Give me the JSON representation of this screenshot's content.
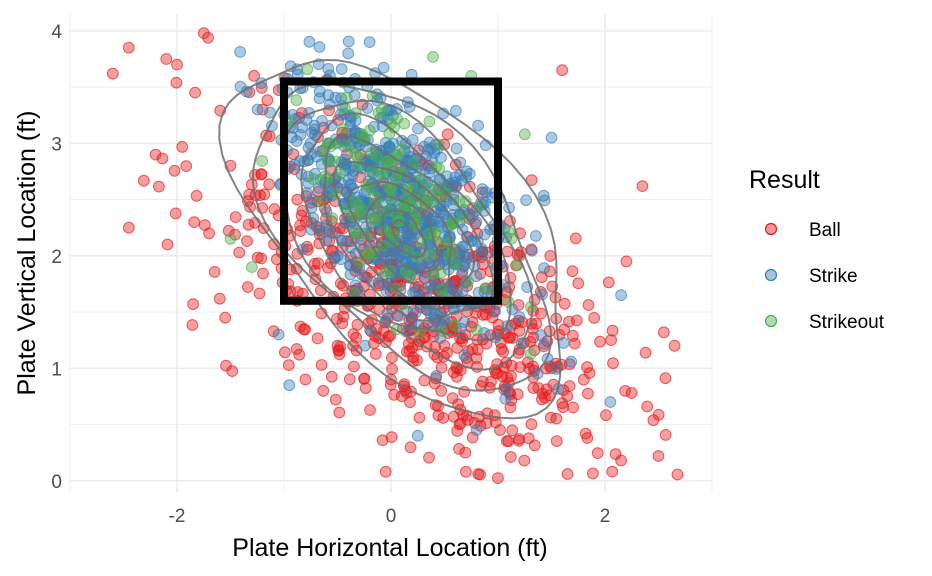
{
  "chart_data": {
    "type": "scatter",
    "xlabel": "Plate Horizontal Location (ft)",
    "ylabel": "Plate Vertical Location (ft)",
    "xlim": [
      -3.0,
      3.0
    ],
    "ylim": [
      -0.1,
      4.15
    ],
    "x_ticks": [
      -2,
      0,
      2
    ],
    "y_ticks": [
      0,
      1,
      2,
      3,
      4
    ],
    "x_tick_labels": [
      "-2",
      "0",
      "2"
    ],
    "y_tick_labels": [
      "0",
      "1",
      "2",
      "3",
      "4"
    ],
    "grid": true,
    "legend": {
      "title": "Result",
      "position": "right",
      "entries": [
        "Ball",
        "Strike",
        "Strikeout"
      ]
    },
    "strike_zone": {
      "x": [
        -1.0,
        1.0
      ],
      "y": [
        1.6,
        3.55
      ]
    },
    "density_contours": true,
    "series": [
      {
        "name": "Ball",
        "color": "#E41A1C",
        "count": 700,
        "center": [
          0.3,
          1.6
        ],
        "spread": [
          0.95,
          0.8
        ],
        "points": [
          [
            -2.6,
            3.62
          ],
          [
            -2.45,
            3.85
          ],
          [
            -2.1,
            3.75
          ],
          [
            -2.0,
            3.7
          ],
          [
            -1.75,
            3.98
          ],
          [
            -2.45,
            2.25
          ],
          [
            -2.2,
            2.9
          ],
          [
            -1.7,
            2.2
          ],
          [
            -1.85,
            1.57
          ],
          [
            -1.55,
            1.45
          ],
          [
            2.35,
            2.62
          ],
          [
            2.55,
            1.32
          ],
          [
            2.65,
            1.2
          ],
          [
            2.5,
            0.22
          ],
          [
            2.15,
            0.18
          ],
          [
            1.6,
            3.65
          ],
          [
            -0.05,
            0.08
          ],
          [
            0.7,
            0.08
          ],
          [
            1.65,
            0.06
          ],
          [
            2.2,
            1.95
          ],
          [
            1.2,
            2.0
          ],
          [
            0.0,
            0.9
          ],
          [
            0.5,
            1.2
          ],
          [
            1.0,
            1.3
          ],
          [
            -0.5,
            1.2
          ],
          [
            1.5,
            1.0
          ],
          [
            0.9,
            0.6
          ],
          [
            -0.8,
            0.9
          ],
          [
            -1.5,
            2.8
          ],
          [
            -1.2,
            3.3
          ]
        ]
      },
      {
        "name": "Strike",
        "color": "#377EB8",
        "count": 650,
        "center": [
          0.05,
          2.45
        ],
        "spread": [
          0.55,
          0.6
        ],
        "points": [
          [
            -0.2,
            3.9
          ],
          [
            -0.4,
            3.8
          ],
          [
            0.1,
            2.3
          ],
          [
            0.0,
            2.5
          ],
          [
            -0.5,
            2.0
          ],
          [
            0.6,
            2.7
          ],
          [
            1.5,
            3.05
          ],
          [
            0.8,
            0.45
          ],
          [
            0.25,
            0.4
          ],
          [
            -0.95,
            0.85
          ],
          [
            -1.05,
            1.3
          ],
          [
            2.15,
            1.65
          ],
          [
            2.05,
            0.7
          ]
        ]
      },
      {
        "name": "Strikeout",
        "color": "#4DAF4A",
        "count": 150,
        "center": [
          0.0,
          2.5
        ],
        "spread": [
          0.45,
          0.5
        ],
        "points": [
          [
            0.75,
            3.6
          ],
          [
            1.25,
            3.08
          ],
          [
            -1.5,
            2.15
          ],
          [
            -1.3,
            1.9
          ],
          [
            0.2,
            2.6
          ],
          [
            -0.3,
            2.8
          ]
        ]
      }
    ]
  }
}
